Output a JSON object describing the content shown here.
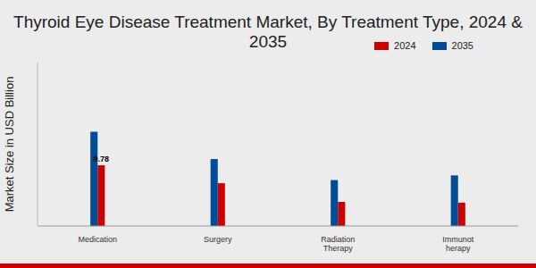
{
  "chart_data": {
    "type": "bar",
    "title": "Thyroid Eye Disease Treatment Market, By Treatment Type, 2024 & 2035",
    "y_label": "Market Size in USD Billion",
    "categories": [
      "Medication",
      "Surgery",
      "Radiation Therapy",
      "Immunot herapy"
    ],
    "series": [
      {
        "name": "2024",
        "color": "#cc0000",
        "values": [
          0.78,
          0.55,
          0.31,
          0.3
        ],
        "value_labels": [
          "0.78",
          null,
          null,
          null
        ]
      },
      {
        "name": "2035",
        "color": "#004c97",
        "values": [
          1.21,
          0.86,
          0.59,
          0.65
        ]
      }
    ],
    "ylim": [
      0,
      2.1
    ],
    "yticks": [],
    "grid": false,
    "legend": "top-right",
    "tick_labels": "x"
  }
}
